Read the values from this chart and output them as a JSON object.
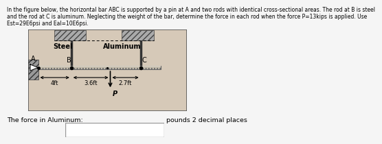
{
  "title_lines": [
    "In the figure below, the horizontal bar ABC is supported by a pin at A and two rods with identical cross-sectional areas. The rod at B is steel",
    "and the rod at C is aluminum. Neglecting the weight of the bar, determine the force in each rod when the force P=13kips is applied. Use",
    "Est=29E6psi and Eal=10E6psi."
  ],
  "bottom_label": "The force in Aluminum:",
  "bottom_suffix": "pounds 2 decimal places",
  "title_fontsize": 5.5,
  "label_fontsize": 6.8,
  "diagram_bg": "#d6c9b8",
  "ceiling_hatch_color": "#888888",
  "wall_hatch_color": "#888888",
  "rod_color": "#555555",
  "bar_color": "#c8c0b0",
  "bar_edge": "#666666"
}
